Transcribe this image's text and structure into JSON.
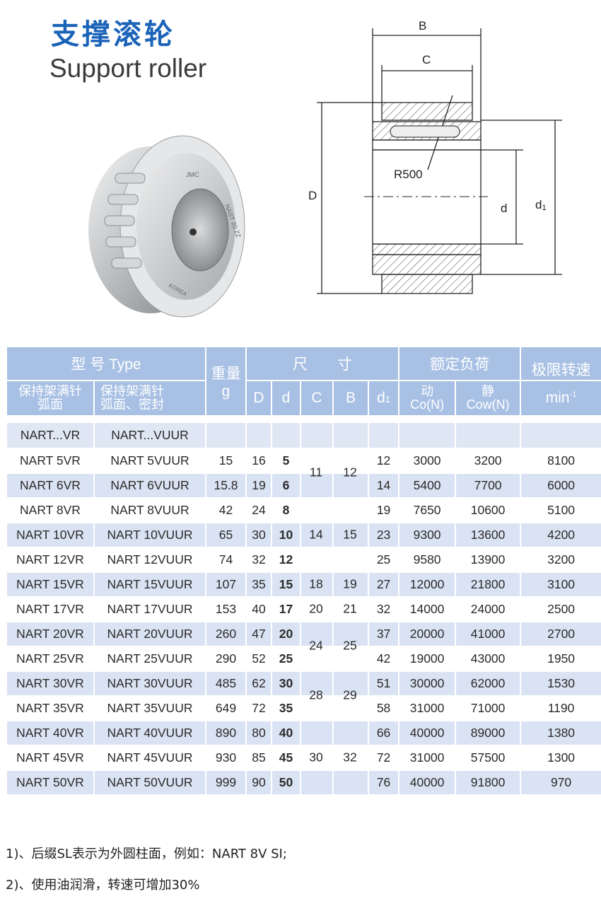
{
  "title_cn": "支撑滚轮",
  "title_en": "Support roller",
  "photo": {
    "engravings": [
      "JMC",
      "NAST 20 ZZ",
      "KOREA"
    ]
  },
  "drawing": {
    "labels": {
      "B": "B",
      "C": "C",
      "D": "D",
      "d": "d",
      "d1": "d",
      "d1_sub": "1",
      "radius": "R500"
    }
  },
  "table": {
    "header": {
      "type": "型 号 Type",
      "weight": "重量",
      "weight_unit": "g",
      "dimensions": "尺　　寸",
      "load": "额定负荷",
      "speed": "极限转速",
      "type_a": "保持架满针\n弧面",
      "type_a_l1": "保持架满针",
      "type_a_l2": "弧面",
      "type_b_l1": "保持架满针",
      "type_b_l2": "弧面、密封",
      "D": "D",
      "d": "d",
      "C": "C",
      "B": "B",
      "d1": "d",
      "d1_sub": "1",
      "dynamic": "动",
      "dynamic_sym": "Co(N)",
      "static": "静",
      "static_sym": "Cow(N)",
      "speed_unit": "min",
      "speed_unit_sup": "-1"
    },
    "series": {
      "a": "NART...VR",
      "b": "NART...VUUR"
    },
    "rows": [
      {
        "a": "NART  5VR",
        "b": "NART  5VUUR",
        "w": "15",
        "D": "16",
        "d": "5",
        "d1": "12",
        "co": "3000",
        "cow": "3200",
        "n": "8100"
      },
      {
        "a": "NART  6VR",
        "b": "NART  6VUUR",
        "w": "15.8",
        "D": "19",
        "d": "6",
        "d1": "14",
        "co": "5400",
        "cow": "7700",
        "n": "6000"
      },
      {
        "a": "NART  8VR",
        "b": "NART  8VUUR",
        "w": "42",
        "D": "24",
        "d": "8",
        "d1": "19",
        "co": "7650",
        "cow": "10600",
        "n": "5100"
      },
      {
        "a": "NART 10VR",
        "b": "NART 10VUUR",
        "w": "65",
        "D": "30",
        "d": "10",
        "d1": "23",
        "co": "9300",
        "cow": "13600",
        "n": "4200"
      },
      {
        "a": "NART 12VR",
        "b": "NART 12VUUR",
        "w": "74",
        "D": "32",
        "d": "12",
        "d1": "25",
        "co": "9580",
        "cow": "13900",
        "n": "3200"
      },
      {
        "a": "NART 15VR",
        "b": "NART 15VUUR",
        "w": "107",
        "D": "35",
        "d": "15",
        "d1": "27",
        "co": "12000",
        "cow": "21800",
        "n": "3100"
      },
      {
        "a": "NART 17VR",
        "b": "NART 17VUUR",
        "w": "153",
        "D": "40",
        "d": "17",
        "d1": "32",
        "co": "14000",
        "cow": "24000",
        "n": "2500"
      },
      {
        "a": "NART 20VR",
        "b": "NART 20VUUR",
        "w": "260",
        "D": "47",
        "d": "20",
        "d1": "37",
        "co": "20000",
        "cow": "41000",
        "n": "2700"
      },
      {
        "a": "NART 25VR",
        "b": "NART 25VUUR",
        "w": "290",
        "D": "52",
        "d": "25",
        "d1": "42",
        "co": "19000",
        "cow": "43000",
        "n": "1950"
      },
      {
        "a": "NART 30VR",
        "b": "NART 30VUUR",
        "w": "485",
        "D": "62",
        "d": "30",
        "d1": "51",
        "co": "30000",
        "cow": "62000",
        "n": "1530"
      },
      {
        "a": "NART 35VR",
        "b": "NART 35VUUR",
        "w": "649",
        "D": "72",
        "d": "35",
        "d1": "58",
        "co": "31000",
        "cow": "71000",
        "n": "1190"
      },
      {
        "a": "NART 40VR",
        "b": "NART 40VUUR",
        "w": "890",
        "D": "80",
        "d": "40",
        "d1": "66",
        "co": "40000",
        "cow": "89000",
        "n": "1380"
      },
      {
        "a": "NART 45VR",
        "b": "NART 45VUUR",
        "w": "930",
        "D": "85",
        "d": "45",
        "d1": "72",
        "co": "31000",
        "cow": "57500",
        "n": "1300"
      },
      {
        "a": "NART 50VR",
        "b": "NART 50VUUR",
        "w": "999",
        "D": "90",
        "d": "50",
        "d1": "76",
        "co": "40000",
        "cow": "91800",
        "n": "970"
      }
    ],
    "cb_groups": [
      {
        "C": "11",
        "B": "12",
        "first_row": 0,
        "last_row": 1
      },
      {
        "C": "14",
        "B": "15",
        "first_row": 2,
        "last_row": 4
      },
      {
        "C": "18",
        "B": "19",
        "first_row": 5,
        "last_row": 5
      },
      {
        "C": "20",
        "B": "21",
        "first_row": 6,
        "last_row": 6
      },
      {
        "C": "24",
        "B": "25",
        "first_row": 7,
        "last_row": 8
      },
      {
        "C": "28",
        "B": "29",
        "first_row": 9,
        "last_row": 10
      },
      {
        "C": "30",
        "B": "32",
        "first_row": 11,
        "last_row": 13
      }
    ]
  },
  "notes": [
    "1)、后缀SL表示为外圆柱面，例如：NART  8V  SI;",
    "2)、使用油润滑，转速可增加30%"
  ],
  "colors": {
    "title": "#1b63b8",
    "header_bg": "#a8c0e4",
    "stripe": "#dae3f3"
  }
}
